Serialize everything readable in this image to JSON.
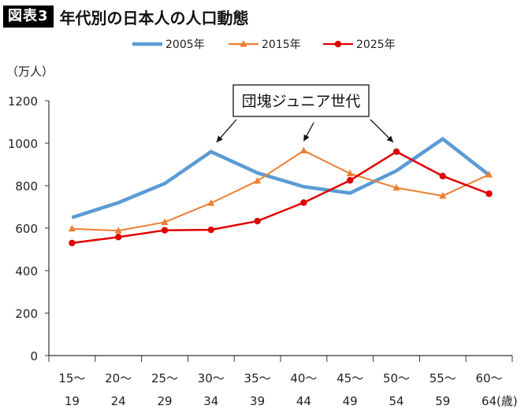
{
  "header": {
    "badge": "図表3",
    "title": "年代別の日本人の人口動態"
  },
  "chart_data": {
    "type": "line",
    "title": "年代別の日本人の人口動態",
    "ylabel": "（万人）",
    "xunit": "(歳)",
    "ylim": [
      0,
      1200
    ],
    "yticks": [
      0,
      200,
      400,
      600,
      800,
      1000,
      1200
    ],
    "grid": false,
    "legend_position": "top",
    "categories": [
      {
        "top": "15〜",
        "bottom": "19"
      },
      {
        "top": "20〜",
        "bottom": "24"
      },
      {
        "top": "25〜",
        "bottom": "29"
      },
      {
        "top": "30〜",
        "bottom": "34"
      },
      {
        "top": "35〜",
        "bottom": "39"
      },
      {
        "top": "40〜",
        "bottom": "44"
      },
      {
        "top": "45〜",
        "bottom": "49"
      },
      {
        "top": "50〜",
        "bottom": "54"
      },
      {
        "top": "55〜",
        "bottom": "59"
      },
      {
        "top": "60〜",
        "bottom": "64"
      }
    ],
    "series": [
      {
        "name": "2005年",
        "color": "#5b9bd5",
        "marker": "none",
        "values": [
          650,
          720,
          810,
          960,
          860,
          795,
          765,
          870,
          1020,
          850
        ]
      },
      {
        "name": "2015年",
        "color": "#ed7d31",
        "marker": "triangle",
        "values": [
          597,
          588,
          628,
          718,
          822,
          965,
          857,
          790,
          752,
          852
        ]
      },
      {
        "name": "2025年",
        "color": "#e00000",
        "marker": "circle",
        "values": [
          530,
          558,
          590,
          592,
          633,
          720,
          825,
          960,
          845,
          762
        ]
      }
    ],
    "annotation": {
      "text": "団塊ジュニア世代",
      "targets": [
        {
          "series": 0,
          "index": 3
        },
        {
          "series": 1,
          "index": 5
        },
        {
          "series": 2,
          "index": 7
        }
      ]
    }
  }
}
